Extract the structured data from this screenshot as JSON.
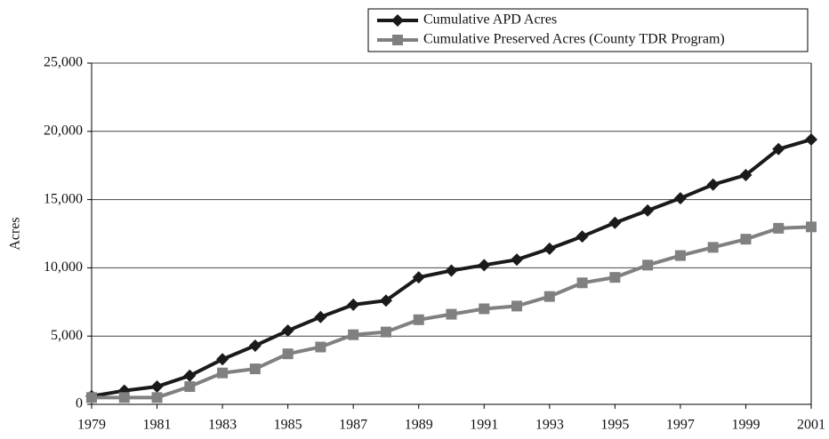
{
  "chart_data": {
    "type": "line",
    "y_label": "Acres",
    "x": [
      1979,
      1980,
      1981,
      1982,
      1983,
      1984,
      1985,
      1986,
      1987,
      1988,
      1989,
      1990,
      1991,
      1992,
      1993,
      1994,
      1995,
      1996,
      1997,
      1998,
      1999,
      2000,
      2001
    ],
    "series": [
      {
        "name": "Cumulative APD Acres",
        "color": "#1a1a1a",
        "marker": "diamond",
        "values": [
          600,
          1000,
          1300,
          2100,
          3300,
          4300,
          5400,
          6400,
          7300,
          7600,
          9300,
          9800,
          10200,
          10600,
          11400,
          12300,
          13300,
          14200,
          15100,
          16100,
          16800,
          18700,
          19400
        ]
      },
      {
        "name": "Cumulative Preserved Acres (County TDR Program)",
        "color": "#808080",
        "marker": "square",
        "values": [
          500,
          500,
          500,
          1300,
          2300,
          2600,
          3700,
          4200,
          5100,
          5300,
          6200,
          6600,
          7000,
          7200,
          7900,
          8900,
          9300,
          10200,
          10900,
          11500,
          12100,
          12900,
          13000
        ]
      }
    ],
    "xlim": [
      1979,
      2001
    ],
    "xticks": [
      1979,
      1981,
      1983,
      1985,
      1987,
      1989,
      1991,
      1993,
      1995,
      1997,
      1999,
      2001
    ],
    "ylim": [
      0,
      25000
    ],
    "yticks": [
      0,
      {
        "value": 5000,
        "label": "5,000"
      },
      {
        "value": 10000,
        "label": "10,000"
      },
      {
        "value": 15000,
        "label": "15,000"
      },
      {
        "value": 20000,
        "label": "20,000"
      },
      {
        "value": 25000,
        "label": "25,000"
      }
    ],
    "grid": true,
    "legend": "top-right"
  }
}
